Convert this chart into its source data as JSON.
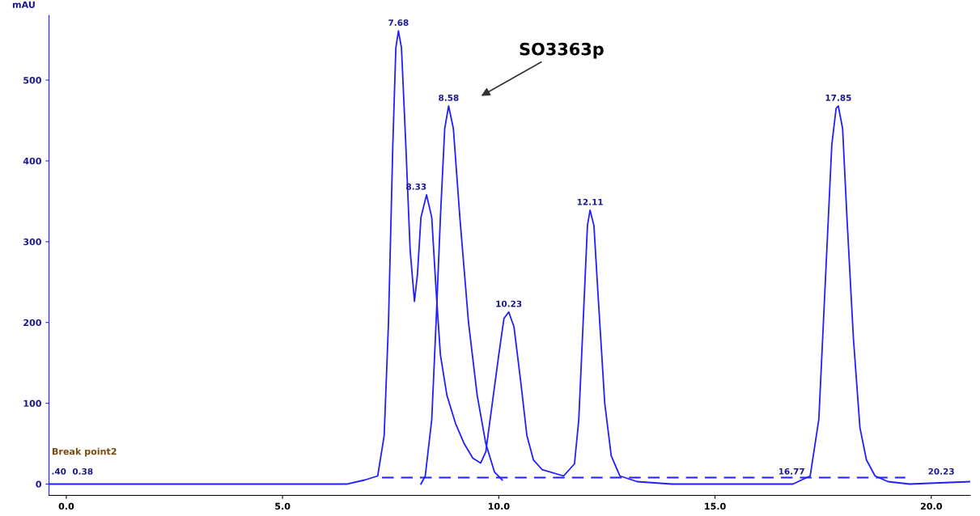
{
  "chart_data": {
    "type": "line",
    "ylabel": "mAU",
    "xlim": [
      -0.4,
      20.9
    ],
    "ylim": [
      -14,
      580
    ],
    "xticks": [
      {
        "value": 0,
        "label": "0.0"
      },
      {
        "value": 5,
        "label": "5.0"
      },
      {
        "value": 10,
        "label": "10.0"
      },
      {
        "value": 15,
        "label": "15.0"
      },
      {
        "value": 20,
        "label": "20.0"
      }
    ],
    "yticks": [
      0,
      100,
      200,
      300,
      400,
      500
    ],
    "grid": false,
    "series": [
      {
        "color": "#1f1fff",
        "x": [
          -0.4,
          6.5,
          6.9,
          7.2,
          7.35,
          7.45,
          7.55,
          7.62,
          7.68,
          7.75,
          7.85,
          7.95,
          8.05,
          8.12,
          8.2,
          8.33,
          8.45,
          8.55,
          8.65,
          8.8,
          9.0,
          9.2,
          9.4,
          9.58,
          9.7,
          9.85,
          10.0,
          10.12,
          10.23,
          10.35,
          10.5,
          10.65,
          10.8,
          11.0,
          11.5,
          11.75,
          11.85,
          11.95,
          12.05,
          12.11,
          12.2,
          12.3,
          12.45,
          12.6,
          12.8,
          13.2,
          14,
          16.8,
          17.2,
          17.4,
          17.55,
          17.7,
          17.8,
          17.85,
          17.95,
          18.05,
          18.2,
          18.35,
          18.5,
          18.7,
          19,
          19.5,
          20.9
        ],
        "values": [
          0,
          0,
          5,
          10,
          60,
          200,
          420,
          540,
          561,
          540,
          420,
          290,
          226,
          260,
          330,
          358,
          330,
          240,
          160,
          110,
          75,
          50,
          32,
          26,
          40,
          100,
          160,
          205,
          213,
          195,
          130,
          60,
          30,
          18,
          10,
          25,
          80,
          200,
          320,
          339,
          320,
          230,
          100,
          35,
          10,
          3,
          0,
          0,
          10,
          80,
          250,
          420,
          465,
          468,
          440,
          330,
          180,
          70,
          30,
          10,
          3,
          0,
          3
        ]
      },
      {
        "color": "#1f1fff",
        "x": [
          8.2,
          8.3,
          8.45,
          8.55,
          8.65,
          8.75,
          8.84,
          8.95,
          9.1,
          9.3,
          9.5,
          9.7,
          9.9,
          10.08
        ],
        "values": [
          0,
          10,
          80,
          200,
          330,
          440,
          468,
          440,
          330,
          200,
          110,
          50,
          15,
          5
        ]
      },
      {
        "color": "#1f1fff",
        "line_style": "dashed",
        "x": [
          7.3,
          19.4
        ],
        "values": [
          8,
          8
        ]
      }
    ],
    "annotations": [
      {
        "text": "7.68",
        "x": 7.68,
        "y": 561
      },
      {
        "text": "8.33",
        "x": 8.33,
        "y": 358
      },
      {
        "text": "8.58",
        "x": 8.84,
        "y": 468
      },
      {
        "text": "10.23",
        "x": 10.23,
        "y": 213
      },
      {
        "text": "12.11",
        "x": 12.11,
        "y": 339
      },
      {
        "text": "17.85",
        "x": 17.85,
        "y": 468
      },
      {
        "text": "16.77",
        "x": 16.77,
        "y": 0
      },
      {
        "text": "20.23",
        "x": 20.23,
        "y": 0
      },
      {
        "text": ".40",
        "x": 0.0,
        "y": 0
      },
      {
        "text": "0.38",
        "x": 0.38,
        "y": 0
      },
      "SO3363p",
      "Break point2"
    ]
  }
}
